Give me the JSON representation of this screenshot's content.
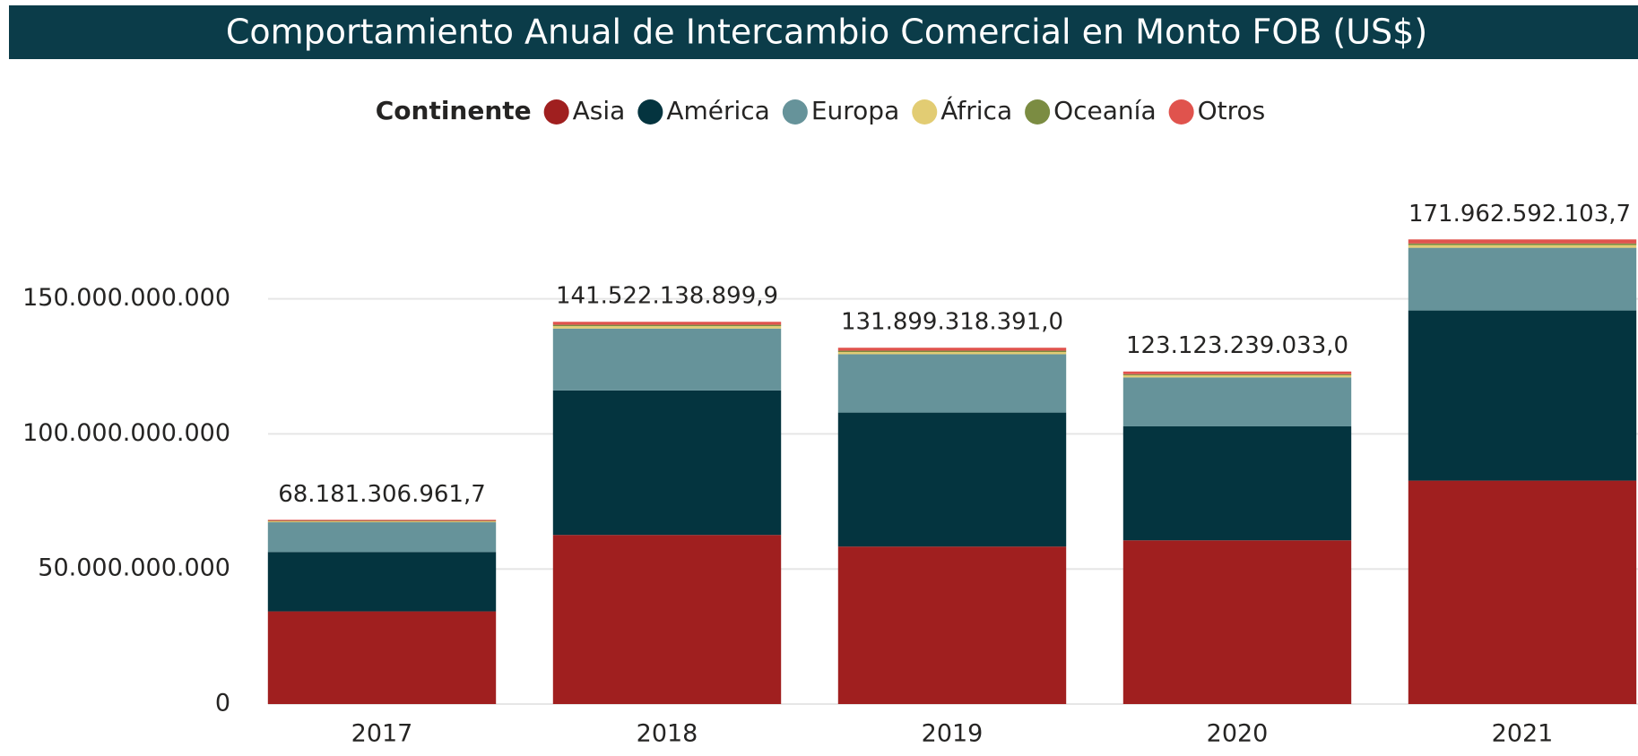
{
  "chart_data": {
    "type": "stacked_bar",
    "title": "Comportamiento Anual de Intercambio Comercial en Monto FOB (US$)",
    "legend_title": "Continente",
    "categories": [
      "2017",
      "2018",
      "2019",
      "2020",
      "2021"
    ],
    "series": [
      {
        "name": "Asia",
        "color": "#a01f1f",
        "values": [
          34300000000,
          62600000000,
          58300000000,
          60600000000,
          82700000000
        ]
      },
      {
        "name": "América",
        "color": "#04343f",
        "values": [
          22000000000,
          53500000000,
          49600000000,
          42200000000,
          63000000000
        ]
      },
      {
        "name": "Europa",
        "color": "#66939a",
        "values": [
          11000000000,
          22900000000,
          21600000000,
          18100000000,
          23200000000
        ]
      },
      {
        "name": "África",
        "color": "#e2cc73",
        "values": [
          300000000,
          900000000,
          800000000,
          800000000,
          1000000000
        ]
      },
      {
        "name": "Oceanía",
        "color": "#7b8c42",
        "values": [
          200000000,
          500000000,
          500000000,
          400000000,
          600000000
        ]
      },
      {
        "name": "Otros",
        "color": "#e0534d",
        "values": [
          400000000,
          1100000000,
          1100000000,
          1000000000,
          1500000000
        ]
      }
    ],
    "totals": [
      68181306961.7,
      141522138899.9,
      131899318391.0,
      123123239033.0,
      171962592103.7
    ],
    "totals_labels": [
      "68.181.306.961,7",
      "141.522.138.899,9",
      "131.899.318.391,0",
      "123.123.239.033,0",
      "171.962.592.103,7"
    ],
    "ylim": [
      0,
      190000000000
    ],
    "yticks": [
      0,
      {
        "value": 50000000000,
        "label": "50.000.000.000"
      },
      {
        "value": 100000000000,
        "label": "100.000.000.000"
      },
      {
        "value": 150000000000,
        "label": "150.000.000.000"
      }
    ],
    "grid": true
  }
}
